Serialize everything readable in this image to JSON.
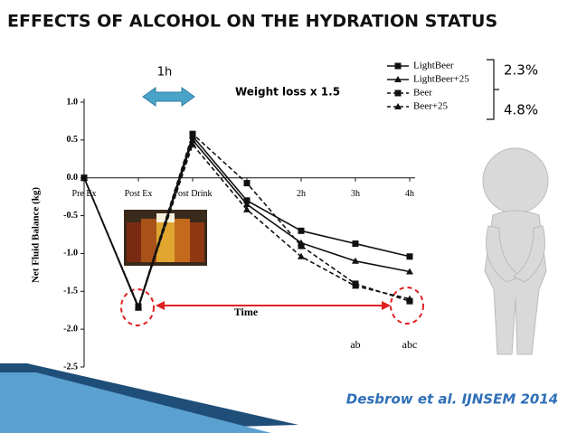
{
  "chart_data": {
    "type": "line",
    "title": "EFFECTS OF ALCOHOL ON THE HYDRATION STATUS",
    "y_label": "Net Fluid Balance (kg)",
    "x_label": "Time",
    "categories": [
      "Pre Ex",
      "Post Ex",
      "Post Drink",
      null,
      "2h",
      "3h",
      "4h"
    ],
    "series": [
      {
        "name": "LightBeer",
        "color": "#111111",
        "marker": "square",
        "dashed": false,
        "values": [
          0,
          -1.7,
          0.55,
          -0.3,
          -0.7,
          -0.87,
          -1.04
        ]
      },
      {
        "name": "LightBeer+25",
        "color": "#111111",
        "marker": "triangle",
        "dashed": false,
        "values": [
          0,
          -1.72,
          0.5,
          -0.35,
          -0.86,
          -1.1,
          -1.24
        ]
      },
      {
        "name": "Beer",
        "color": "#111111",
        "marker": "square",
        "dashed": true,
        "values": [
          0,
          -1.7,
          0.58,
          -0.07,
          -0.9,
          -1.4,
          -1.63
        ]
      },
      {
        "name": "Beer+25",
        "color": "#111111",
        "marker": "triangle",
        "dashed": true,
        "values": [
          0,
          -1.7,
          0.44,
          -0.42,
          -1.04,
          -1.43,
          -1.6
        ]
      }
    ],
    "ylim": [
      -2.5,
      1.0
    ],
    "yticks": [
      {
        "value": 1,
        "label": "1.0"
      },
      0.5,
      {
        "value": 0,
        "label": "0.0"
      },
      -0.5,
      {
        "value": -1,
        "label": "-1.0"
      },
      -1.5,
      {
        "value": -2,
        "label": "-2.0"
      },
      -2.5
    ],
    "significance_labels": [
      "ab",
      "abc"
    ],
    "interval_label": "1h",
    "note": "Weight loss x 1.5",
    "percent_labels": [
      "2.3%",
      "4.8%"
    ],
    "citation": "Desbrow et al. IJNSEM 2014"
  }
}
